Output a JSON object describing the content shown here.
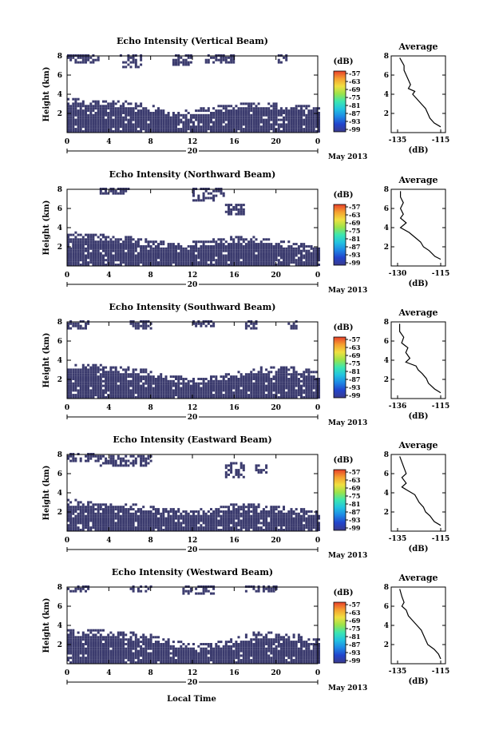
{
  "figure": {
    "date_label": "May 2013",
    "xlabel": "Local Time",
    "ylabel": "Height (km)",
    "unit_label": "(dB)",
    "average_title": "Average",
    "day_label": "20",
    "x_ticks": [
      "0",
      "4",
      "8",
      "12",
      "16",
      "20",
      "0"
    ],
    "y_ticks": [
      "2",
      "4",
      "6",
      "8"
    ],
    "colorbar_ticks": [
      "-57",
      "-63",
      "-69",
      "-75",
      "-81",
      "-87",
      "-93",
      "-99"
    ],
    "colorbar_colors": [
      "#3a3a8c",
      "#2244cc",
      "#1e88e5",
      "#22c3e0",
      "#3ce6b0",
      "#9be34a",
      "#f0e040",
      "#f5a030",
      "#e8402a"
    ],
    "fill_color": "#3b3b6e"
  },
  "chart_data": [
    {
      "type": "heatmap",
      "title": "Echo Intensity (Vertical Beam)",
      "xlim": [
        0,
        24
      ],
      "ylim": [
        0,
        8
      ],
      "lower_top": [
        [
          0,
          3.1
        ],
        [
          3,
          3.0
        ],
        [
          6,
          2.8
        ],
        [
          8,
          2.4
        ],
        [
          10,
          1.7
        ],
        [
          12,
          2.0
        ],
        [
          14,
          2.3
        ],
        [
          16,
          2.6
        ],
        [
          18,
          2.8
        ],
        [
          20,
          2.6
        ],
        [
          22,
          2.5
        ],
        [
          24,
          2.2
        ]
      ],
      "upper_patches": [
        [
          0,
          3,
          7.2,
          8
        ],
        [
          5,
          7,
          6.6,
          8
        ],
        [
          10,
          12,
          6.8,
          8
        ],
        [
          13,
          16,
          7.0,
          8
        ],
        [
          20,
          21,
          7.0,
          8
        ]
      ],
      "profile": {
        "xlim": [
          -135,
          -115
        ],
        "x_ticks": [
          "-135",
          "-115"
        ],
        "points": [
          [
            -134,
            7.8
          ],
          [
            -133,
            7.4
          ],
          [
            -132,
            7.0
          ],
          [
            -132,
            6.5
          ],
          [
            -131,
            6.0
          ],
          [
            -130,
            5.5
          ],
          [
            -129,
            5.0
          ],
          [
            -130,
            4.6
          ],
          [
            -127,
            4.3
          ],
          [
            -128,
            4.0
          ],
          [
            -126,
            3.5
          ],
          [
            -124,
            3.0
          ],
          [
            -122,
            2.5
          ],
          [
            -121,
            2.0
          ],
          [
            -120,
            1.5
          ],
          [
            -118,
            1.0
          ],
          [
            -115,
            0.6
          ]
        ]
      }
    },
    {
      "type": "heatmap",
      "title": "Echo Intensity (Northward Beam)",
      "xlim": [
        0,
        24
      ],
      "ylim": [
        0,
        8
      ],
      "lower_top": [
        [
          0,
          3.2
        ],
        [
          3,
          2.9
        ],
        [
          6,
          2.6
        ],
        [
          8,
          2.3
        ],
        [
          10,
          2.0
        ],
        [
          12,
          2.1
        ],
        [
          14,
          2.4
        ],
        [
          16,
          2.7
        ],
        [
          18,
          2.6
        ],
        [
          20,
          2.3
        ],
        [
          22,
          2.0
        ],
        [
          24,
          1.5
        ]
      ],
      "upper_patches": [
        [
          3,
          6,
          7.4,
          8
        ],
        [
          12,
          15,
          7.0,
          8
        ],
        [
          15,
          17,
          5.2,
          6.3
        ],
        [
          12,
          14,
          6.5,
          7.0
        ]
      ],
      "profile": {
        "xlim": [
          -130,
          -115
        ],
        "x_ticks": [
          "-130",
          "-115"
        ],
        "points": [
          [
            -129,
            7.8
          ],
          [
            -129,
            7.2
          ],
          [
            -128,
            6.6
          ],
          [
            -129,
            6.0
          ],
          [
            -128,
            5.4
          ],
          [
            -129,
            5.0
          ],
          [
            -127,
            4.5
          ],
          [
            -129,
            4.0
          ],
          [
            -126,
            3.5
          ],
          [
            -124,
            3.0
          ],
          [
            -122,
            2.5
          ],
          [
            -121,
            2.0
          ],
          [
            -119,
            1.6
          ],
          [
            -117,
            1.0
          ],
          [
            -115,
            0.7
          ]
        ]
      }
    },
    {
      "type": "heatmap",
      "title": "Echo Intensity (Southward Beam)",
      "xlim": [
        0,
        24
      ],
      "ylim": [
        0,
        8
      ],
      "lower_top": [
        [
          0,
          3.3
        ],
        [
          3,
          3.1
        ],
        [
          6,
          2.8
        ],
        [
          8,
          2.5
        ],
        [
          10,
          2.0
        ],
        [
          12,
          1.7
        ],
        [
          14,
          1.9
        ],
        [
          16,
          2.3
        ],
        [
          18,
          2.8
        ],
        [
          20,
          3.0
        ],
        [
          22,
          2.8
        ],
        [
          24,
          2.4
        ]
      ],
      "upper_patches": [
        [
          0,
          2,
          7.2,
          8
        ],
        [
          6,
          8,
          7.0,
          8
        ],
        [
          12,
          14,
          7.4,
          8
        ],
        [
          17,
          18,
          7.2,
          8
        ],
        [
          21,
          22,
          7.2,
          8
        ]
      ],
      "profile": {
        "xlim": [
          -136,
          -115
        ],
        "x_ticks": [
          "-136",
          "-115"
        ],
        "points": [
          [
            -135,
            7.8
          ],
          [
            -135,
            7.0
          ],
          [
            -133,
            6.4
          ],
          [
            -134,
            5.8
          ],
          [
            -131,
            5.3
          ],
          [
            -132,
            4.8
          ],
          [
            -130,
            4.2
          ],
          [
            -132,
            3.8
          ],
          [
            -127,
            3.4
          ],
          [
            -126,
            3.0
          ],
          [
            -124,
            2.6
          ],
          [
            -122,
            2.1
          ],
          [
            -121,
            1.6
          ],
          [
            -118,
            1.0
          ],
          [
            -115,
            0.6
          ]
        ]
      }
    },
    {
      "type": "heatmap",
      "title": "Echo Intensity (Eastward Beam)",
      "xlim": [
        0,
        24
      ],
      "ylim": [
        0,
        8
      ],
      "lower_top": [
        [
          0,
          2.9
        ],
        [
          3,
          2.6
        ],
        [
          6,
          2.5
        ],
        [
          8,
          2.2
        ],
        [
          10,
          1.9
        ],
        [
          12,
          1.8
        ],
        [
          14,
          2.0
        ],
        [
          16,
          2.5
        ],
        [
          18,
          2.4
        ],
        [
          20,
          2.2
        ],
        [
          22,
          2.0
        ],
        [
          24,
          1.7
        ]
      ],
      "upper_patches": [
        [
          0,
          3,
          7.0,
          8
        ],
        [
          3,
          8,
          6.5,
          7.8
        ],
        [
          15,
          17,
          5.5,
          7.2
        ],
        [
          18,
          19,
          5.8,
          6.8
        ]
      ],
      "profile": {
        "xlim": [
          -135,
          -115
        ],
        "x_ticks": [
          "-135",
          "-115"
        ],
        "points": [
          [
            -134,
            7.8
          ],
          [
            -133,
            7.2
          ],
          [
            -132,
            6.6
          ],
          [
            -131,
            6.0
          ],
          [
            -133,
            5.6
          ],
          [
            -131,
            5.0
          ],
          [
            -133,
            4.6
          ],
          [
            -130,
            4.2
          ],
          [
            -127,
            3.8
          ],
          [
            -125,
            3.0
          ],
          [
            -123,
            2.5
          ],
          [
            -122,
            2.0
          ],
          [
            -120,
            1.6
          ],
          [
            -118,
            1.0
          ],
          [
            -115,
            0.6
          ]
        ]
      }
    },
    {
      "type": "heatmap",
      "title": "Echo Intensity (Westward Beam)",
      "xlim": [
        0,
        24
      ],
      "ylim": [
        0,
        8
      ],
      "lower_top": [
        [
          0,
          3.2
        ],
        [
          3,
          3.1
        ],
        [
          6,
          2.9
        ],
        [
          8,
          2.6
        ],
        [
          10,
          2.0
        ],
        [
          12,
          1.7
        ],
        [
          14,
          1.8
        ],
        [
          16,
          2.3
        ],
        [
          18,
          2.9
        ],
        [
          20,
          2.8
        ],
        [
          22,
          2.6
        ],
        [
          24,
          2.3
        ]
      ],
      "upper_patches": [
        [
          0,
          2,
          7.4,
          8
        ],
        [
          6,
          8,
          7.3,
          8
        ],
        [
          11,
          14,
          7.2,
          8
        ],
        [
          17,
          20,
          7.3,
          8
        ]
      ],
      "profile": {
        "xlim": [
          -135,
          -115
        ],
        "x_ticks": [
          "-135",
          "-115"
        ],
        "points": [
          [
            -134,
            7.8
          ],
          [
            -133,
            7.0
          ],
          [
            -132,
            6.4
          ],
          [
            -133,
            6.0
          ],
          [
            -131,
            5.6
          ],
          [
            -130,
            5.0
          ],
          [
            -128,
            4.5
          ],
          [
            -126,
            4.0
          ],
          [
            -124,
            3.5
          ],
          [
            -123,
            3.0
          ],
          [
            -122,
            2.5
          ],
          [
            -121,
            2.0
          ],
          [
            -118,
            1.5
          ],
          [
            -116,
            1.0
          ],
          [
            -115,
            0.5
          ]
        ]
      }
    }
  ]
}
